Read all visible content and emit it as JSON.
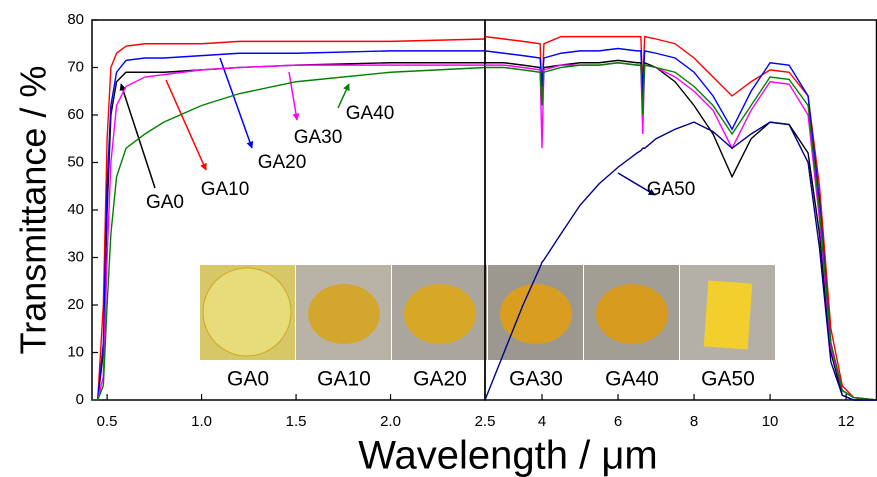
{
  "chart_data": [
    {
      "type": "line",
      "ylabel": "Transmittance / %",
      "xlabel": "Wavelength / μm",
      "xlim": [
        0.42,
        2.5
      ],
      "xticks": [
        0.5,
        {
          "value": 1,
          "label": "1.0"
        },
        1.5,
        {
          "value": 2,
          "label": "2.0"
        },
        2.5
      ],
      "ylim": [
        0,
        80
      ],
      "yticks": [
        0,
        10,
        20,
        30,
        40,
        50,
        60,
        70,
        80
      ],
      "x": [
        0.42,
        0.45,
        0.48,
        0.5,
        0.52,
        0.55,
        0.6,
        0.7,
        0.8,
        1.0,
        1.2,
        1.5,
        2.0,
        2.5
      ],
      "series": [
        {
          "name": "GA0",
          "color": "#000000",
          "values": [
            0,
            0,
            10,
            40,
            60,
            67,
            69,
            69,
            69,
            69.5,
            70,
            70.5,
            71,
            71
          ]
        },
        {
          "name": "GA10",
          "color": "#ff0000",
          "values": [
            0,
            0,
            20,
            55,
            70,
            73,
            74.5,
            75,
            75,
            75,
            75.5,
            75.5,
            75.5,
            76
          ]
        },
        {
          "name": "GA20",
          "color": "#0000ff",
          "values": [
            0,
            0,
            12,
            45,
            62,
            69,
            71.5,
            72,
            72,
            72.5,
            73,
            73,
            73.5,
            73.5
          ]
        },
        {
          "name": "GA30",
          "color": "#ff00ff",
          "values": [
            0,
            0,
            5,
            30,
            50,
            62,
            66,
            68,
            68.5,
            69.5,
            70,
            70.5,
            70.5,
            70.5
          ]
        },
        {
          "name": "GA40",
          "color": "#008000",
          "values": [
            0,
            0,
            3,
            20,
            35,
            47,
            53,
            56,
            58.5,
            62,
            64.5,
            67,
            69,
            70
          ]
        }
      ]
    },
    {
      "type": "line",
      "xlim": [
        2.5,
        12.8
      ],
      "xticks": [
        4,
        6,
        8,
        10,
        12
      ],
      "ylim": [
        0,
        80
      ],
      "x": [
        2.5,
        3,
        3.5,
        3.95,
        4,
        4.05,
        4.5,
        5,
        5.5,
        6,
        6.5,
        6.6,
        6.65,
        6.7,
        7,
        7.5,
        8,
        8.5,
        9,
        9.5,
        10,
        10.5,
        11,
        11.3,
        11.6,
        11.9,
        12.2,
        12.8
      ],
      "series": [
        {
          "name": "GA0",
          "color": "#000000",
          "values": [
            71,
            71,
            70.5,
            70,
            63,
            70,
            70.5,
            71,
            71,
            71.5,
            71,
            71,
            62,
            71,
            70,
            67,
            62,
            56,
            47,
            55,
            58.5,
            58,
            52,
            35,
            10,
            1,
            0,
            0
          ]
        },
        {
          "name": "GA10",
          "color": "#ff0000",
          "values": [
            76.5,
            76,
            75.5,
            75,
            64,
            75,
            76.5,
            76.5,
            76.5,
            76.5,
            76.5,
            76.5,
            66,
            76.5,
            76,
            75,
            72,
            68,
            64,
            67,
            69.5,
            69,
            64,
            45,
            15,
            3,
            0.5,
            0
          ]
        },
        {
          "name": "GA20",
          "color": "#0000ff",
          "values": [
            73.5,
            73,
            72.5,
            72,
            66,
            72,
            73,
            73.5,
            73.5,
            74,
            73.5,
            73.5,
            65,
            73.5,
            73,
            72,
            69,
            64,
            57,
            65,
            71,
            70.5,
            64,
            42,
            12,
            2,
            0.5,
            0
          ]
        },
        {
          "name": "GA30",
          "color": "#ff00ff",
          "values": [
            70.5,
            70.5,
            70,
            69.5,
            53,
            69.5,
            70.5,
            70.5,
            70.5,
            71,
            70.5,
            70.5,
            56,
            70.5,
            70,
            68,
            65,
            61,
            53,
            61,
            67,
            66.5,
            60,
            38,
            11,
            2,
            0.5,
            0
          ]
        },
        {
          "name": "GA40",
          "color": "#008000",
          "values": [
            70,
            70,
            69.5,
            69,
            62,
            69,
            70,
            70.5,
            70.5,
            71,
            70.5,
            70.5,
            60,
            70.5,
            70,
            69,
            66,
            62,
            56,
            62,
            68,
            67.5,
            62,
            40,
            12,
            2,
            0.5,
            0
          ]
        },
        {
          "name": "GA50",
          "color": "#00008b",
          "values": [
            0,
            10,
            20,
            28,
            29,
            29.5,
            35,
            41,
            45.5,
            49,
            52,
            52.5,
            53,
            53,
            55,
            57,
            58.5,
            56.5,
            53,
            56,
            58.5,
            58,
            50,
            32,
            8,
            1,
            0,
            0
          ]
        }
      ]
    }
  ],
  "photo_labels": [
    "GA0",
    "GA10",
    "GA20",
    "GA30",
    "GA40",
    "GA50"
  ]
}
